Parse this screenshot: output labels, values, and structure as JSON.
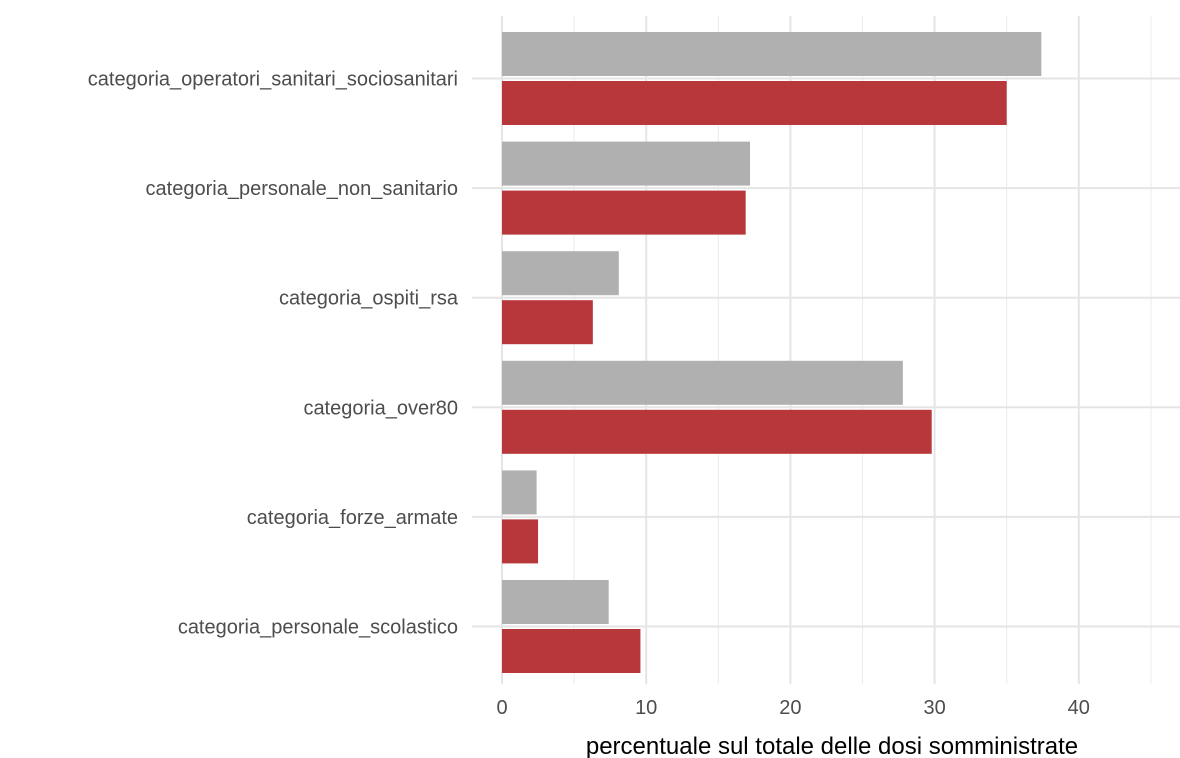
{
  "chart_data": {
    "type": "bar",
    "orientation": "horizontal",
    "title": "",
    "xlabel": "percentuale sul totale delle dosi somministrate",
    "ylabel": "",
    "xlim": [
      0,
      45
    ],
    "xticks": [
      0,
      10,
      20,
      30,
      40
    ],
    "grid": true,
    "legend": "none",
    "categories": [
      "categoria_personale_scolastico",
      "categoria_forze_armate",
      "categoria_over80",
      "categoria_ospiti_rsa",
      "categoria_personale_non_sanitario",
      "categoria_operatori_sanitari_sociosanitari"
    ],
    "series": [
      {
        "color": "#b0b0b0",
        "values": [
          7.4,
          2.4,
          27.8,
          8.1,
          17.2,
          37.4
        ]
      },
      {
        "color": "#b8373a",
        "values": [
          9.6,
          2.5,
          29.8,
          6.3,
          16.9,
          35.0
        ]
      }
    ]
  }
}
